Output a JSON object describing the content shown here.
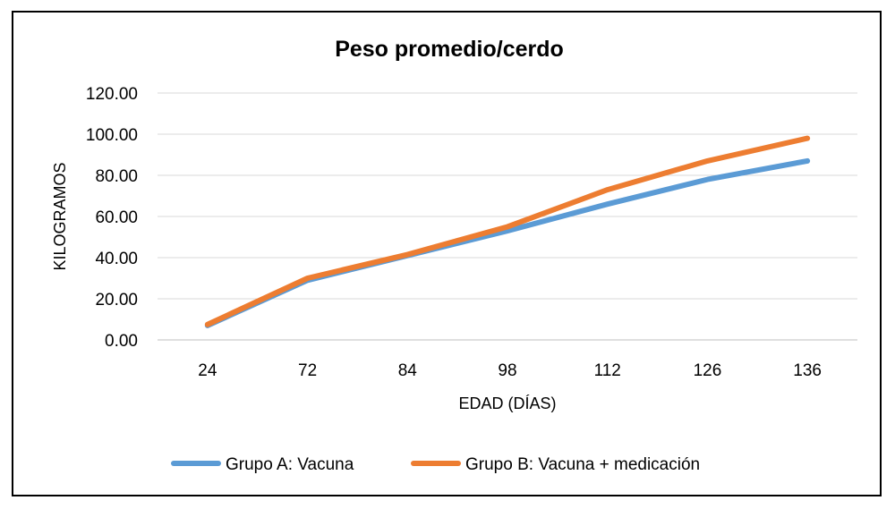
{
  "chart_data": {
    "type": "line",
    "title": "Peso promedio/cerdo",
    "xlabel": "EDAD (DÍAS)",
    "ylabel": "KILOGRAMOS",
    "categories": [
      "24",
      "72",
      "84",
      "98",
      "112",
      "126",
      "136"
    ],
    "ylim": [
      0,
      120
    ],
    "yticks": [
      "0.00",
      "20.00",
      "40.00",
      "60.00",
      "80.00",
      "100.00",
      "120.00"
    ],
    "grid": true,
    "legend_position": "bottom",
    "series": [
      {
        "name": "Grupo A: Vacuna",
        "color": "#5B9BD5",
        "values": [
          7,
          29,
          41,
          53,
          66,
          78,
          87
        ]
      },
      {
        "name": "Grupo B: Vacuna + medicación",
        "color": "#ED7D31",
        "values": [
          7.5,
          30,
          41.5,
          55,
          73,
          87,
          98
        ]
      }
    ]
  }
}
